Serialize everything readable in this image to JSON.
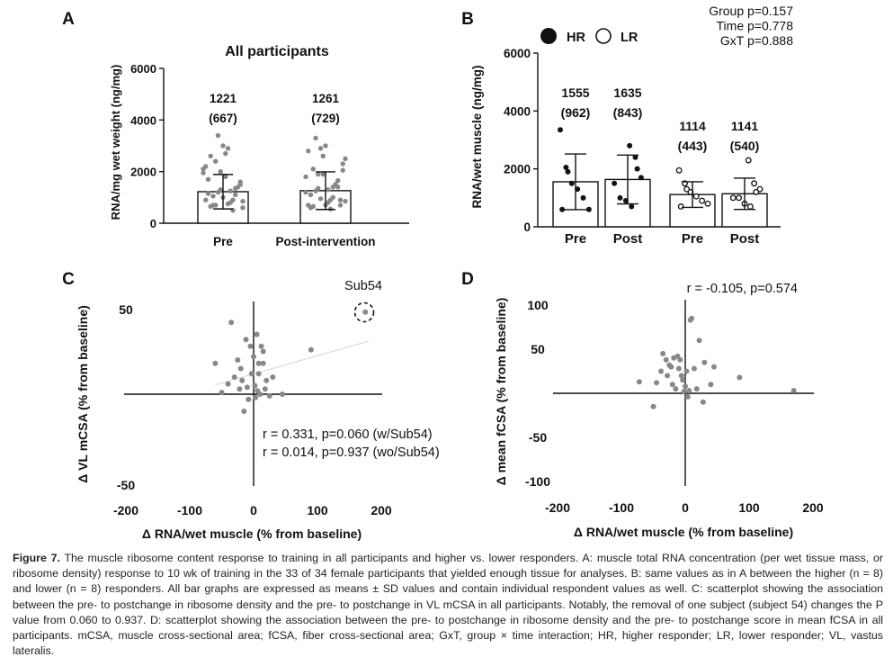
{
  "figure": {
    "caption_label": "Figure 7.",
    "caption_text": " The muscle ribosome content response to training in all participants and higher vs. lower responders. A: muscle total RNA concentration (per wet tissue mass, or ribosome density) response to 10 wk of training in the 33 of 34 female participants that yielded enough tissue for analyses. B: same values as in A between the higher (n = 8) and lower (n = 8) responders. All bar graphs are expressed as means ± SD values and contain individual respondent values as well. C: scatterplot showing the association between the pre- to postchange in ribosome density and the pre- to postchange in VL mCSA in all participants. Notably, the removal of one subject (subject 54) changes the P value from 0.060 to 0.937. D: scatterplot showing the association between the pre- to postchange in ribosome density and the pre- to postchange score in mean fCSA in all participants. mCSA, muscle cross-sectional area; fCSA, fiber cross-sectional area; GxT, group × time interaction; HR, higher responder; LR, lower responder; VL, vastus lateralis."
  },
  "chart_data": [
    {
      "panel": "A",
      "type": "bar",
      "title": "All participants",
      "ylabel": "RNA/mg wet weight (ng/mg)",
      "ylim": [
        0,
        6000
      ],
      "yticks": [
        "0",
        "2000",
        "4000",
        "6000"
      ],
      "categories": [
        "Pre",
        "Post-intervention"
      ],
      "values": [
        1221,
        1261
      ],
      "sd": [
        667,
        729
      ],
      "mean_labels": [
        "1221",
        "1261"
      ],
      "sd_labels": [
        "(667)",
        "(729)"
      ],
      "points": [
        [
          2100,
          2600,
          3400,
          1800,
          900,
          1500,
          2200,
          700,
          1300,
          2900,
          1100,
          600,
          1700,
          2400,
          1000,
          800,
          1400,
          1950,
          650,
          1200,
          2700,
          500,
          1600,
          900,
          1050,
          2000,
          750,
          1350,
          850,
          1150,
          700,
          3000,
          1250
        ],
        [
          2300,
          2800,
          3300,
          1900,
          900,
          1400,
          2500,
          600,
          1350,
          3000,
          1000,
          700,
          1800,
          2100,
          950,
          800,
          1500,
          2050,
          700,
          1250,
          2600,
          550,
          1650,
          850,
          1100,
          1900,
          700,
          1400,
          900,
          1200,
          650,
          2900,
          1300
        ]
      ]
    },
    {
      "panel": "B",
      "type": "bar",
      "ylabel": "RNA/wet muscle (ng/mg)",
      "ylim": [
        0,
        6000
      ],
      "yticks": [
        "0",
        "2000",
        "4000",
        "6000"
      ],
      "legend": [
        {
          "name": "HR",
          "style": "filled"
        },
        {
          "name": "LR",
          "style": "open"
        }
      ],
      "legend_placement": "top-left",
      "stats": [
        "Group p=0.157",
        "Time p=0.778",
        "GxT p=0.888"
      ],
      "categories": [
        "Pre",
        "Post",
        "Pre",
        "Post"
      ],
      "groups": [
        "HR",
        "HR",
        "LR",
        "LR"
      ],
      "values": [
        1555,
        1635,
        1114,
        1141
      ],
      "sd": [
        962,
        843,
        443,
        540
      ],
      "mean_labels": [
        "1555",
        "1635",
        "1114",
        "1141"
      ],
      "sd_labels": [
        "(962)",
        "(843)",
        "(443)",
        "(540)"
      ],
      "points": [
        [
          3350,
          2050,
          1500,
          1300,
          1000,
          600,
          600,
          1900
        ],
        [
          2800,
          2400,
          1700,
          1500,
          1000,
          900,
          700,
          2000
        ],
        [
          1950,
          1500,
          1200,
          1050,
          900,
          800,
          700,
          1300
        ],
        [
          2300,
          1500,
          1300,
          1000,
          1000,
          800,
          700,
          1200
        ]
      ]
    },
    {
      "panel": "C",
      "type": "scatter",
      "xlabel": "Δ RNA/wet muscle (% from baseline)",
      "ylabel": "Δ VL mCSA (% from baseline)",
      "xlim": [
        -200,
        200
      ],
      "ylim": [
        -50,
        50
      ],
      "xticks": [
        "-200",
        "-100",
        "0",
        "100",
        "200"
      ],
      "yticks": [
        "-50",
        "50"
      ],
      "annotation": "Sub54",
      "stats": [
        "r = 0.331, p=0.060  (w/Sub54)",
        "r = 0.014, p=0.937  (wo/Sub54)"
      ],
      "trend": [
        [
          -60,
          5.5
        ],
        [
          180,
          31
        ]
      ],
      "x": [
        -35,
        -25,
        -20,
        -12,
        -5,
        0,
        5,
        8,
        12,
        15,
        -40,
        -30,
        -22,
        -18,
        -10,
        -3,
        2,
        6,
        10,
        18,
        25,
        30,
        -60,
        -50,
        45,
        90,
        -15,
        -8,
        3,
        8,
        15,
        20,
        175
      ],
      "y": [
        42,
        20,
        15,
        32,
        28,
        22,
        35,
        18,
        28,
        25,
        6,
        10,
        3,
        8,
        4,
        12,
        5,
        2,
        0,
        3,
        -1,
        10,
        18,
        1,
        0,
        26,
        -10,
        -3,
        -2,
        12,
        18,
        8,
        48
      ]
    },
    {
      "panel": "D",
      "type": "scatter",
      "xlabel": "Δ RNA/wet muscle (% from baseline)",
      "ylabel": "Δ mean fCSA (% from baseline)",
      "xlim": [
        -200,
        200
      ],
      "ylim": [
        -100,
        100
      ],
      "xticks": [
        "-200",
        "-100",
        "0",
        "100",
        "200"
      ],
      "yticks": [
        "-100",
        "-50",
        "50",
        "100"
      ],
      "stats": [
        "r = -0.105, p=0.574"
      ],
      "x": [
        -72,
        -45,
        -38,
        -35,
        -30,
        -28,
        -25,
        -22,
        -20,
        -18,
        -15,
        -12,
        -10,
        -8,
        -6,
        -4,
        -2,
        0,
        2,
        4,
        6,
        8,
        10,
        14,
        18,
        22,
        28,
        30,
        40,
        45,
        85,
        170,
        -50
      ],
      "y": [
        13,
        12,
        25,
        45,
        38,
        20,
        32,
        30,
        10,
        40,
        5,
        42,
        28,
        38,
        20,
        15,
        2,
        8,
        25,
        -4,
        3,
        83,
        85,
        28,
        5,
        60,
        -10,
        35,
        10,
        30,
        18,
        3,
        -15
      ]
    }
  ]
}
